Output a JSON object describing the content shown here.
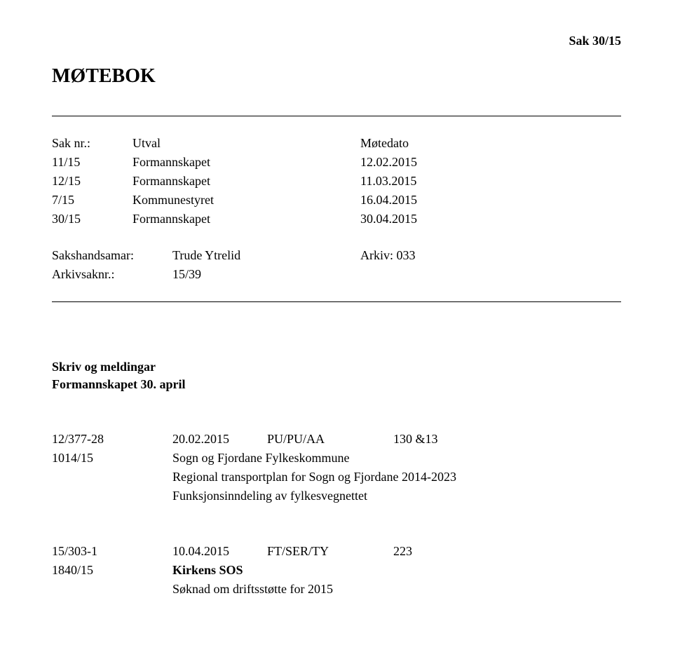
{
  "caseRef": "Sak 30/15",
  "title": "MØTEBOK",
  "meetingTable": {
    "header": {
      "col1": "Sak nr.:",
      "col2": "Utval",
      "col3": "Møtedato"
    },
    "rows": [
      {
        "col1": "11/15",
        "col2": "Formannskapet",
        "col3": "12.02.2015"
      },
      {
        "col1": "12/15",
        "col2": "Formannskapet",
        "col3": "11.03.2015"
      },
      {
        "col1": "7/15",
        "col2": "Kommunestyret",
        "col3": "16.04.2015"
      },
      {
        "col1": "30/15",
        "col2": "Formannskapet",
        "col3": "30.04.2015"
      }
    ]
  },
  "info": {
    "handlerLabel": "Sakshandsamar:",
    "handlerValue": "Trude Ytrelid",
    "arkivLabel": "Arkiv: 033",
    "arkivsakLabel": "Arkivsaknr.:",
    "arkivsakValue": "15/39"
  },
  "sectionHeader": {
    "line1": "Skriv og meldingar",
    "line2": "Formannskapet 30. april"
  },
  "entries": [
    {
      "ref": "12/377-28",
      "date": "20.02.2015",
      "code": "PU/PU/AA",
      "num": "130 &13",
      "caseRef": "1014/15",
      "org": "Sogn og Fjordane Fylkeskommune",
      "desc1": "Regional transportplan for Sogn og Fjordane 2014-2023",
      "desc2": "Funksjonsinndeling av fylkesvegnettet"
    },
    {
      "ref": "15/303-1",
      "date": "10.04.2015",
      "code": "FT/SER/TY",
      "num": "223",
      "caseRef": "1840/15",
      "org": "Kirkens SOS",
      "desc1": "Søknad om driftsstøtte for 2015",
      "desc2": ""
    }
  ]
}
